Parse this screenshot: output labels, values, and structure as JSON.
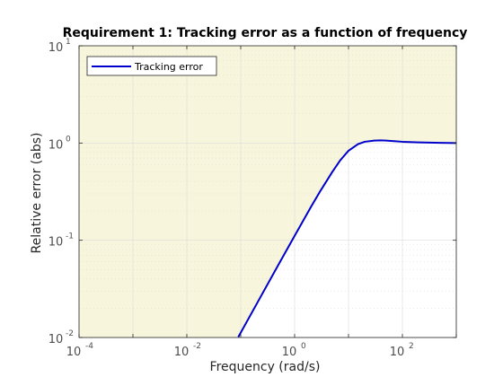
{
  "chart_data": {
    "type": "line",
    "title": "Requirement 1: Tracking error as a function of frequency",
    "xlabel": "Frequency (rad/s)",
    "ylabel": "Relative error (abs)",
    "xscale": "log",
    "yscale": "log",
    "xlim": [
      0.0001,
      1000
    ],
    "ylim": [
      0.01,
      10
    ],
    "grid": true,
    "legend_position": "top-left",
    "x_ticks": [
      {
        "base": "10",
        "exp": "-4",
        "value": 0.0001
      },
      {
        "base": "10",
        "exp": "-2",
        "value": 0.01
      },
      {
        "base": "10",
        "exp": "0",
        "value": 1
      },
      {
        "base": "10",
        "exp": "2",
        "value": 100
      }
    ],
    "y_ticks": [
      {
        "base": "10",
        "exp": "-2",
        "value": 0.01
      },
      {
        "base": "10",
        "exp": "-1",
        "value": 0.1
      },
      {
        "base": "10",
        "exp": "0",
        "value": 1
      },
      {
        "base": "10",
        "exp": "1",
        "value": 10
      }
    ],
    "shaded_region": {
      "description": "requirement bound area",
      "color": "#f7f6dc"
    },
    "series": [
      {
        "name": "Tracking error",
        "color": "#0000cc",
        "x": [
          0.09,
          0.1,
          0.2,
          0.5,
          1,
          2,
          3,
          5,
          7,
          10,
          15,
          20,
          30,
          40,
          50,
          70,
          100,
          200,
          500,
          1000
        ],
        "y": [
          0.0101,
          0.0112,
          0.0224,
          0.0559,
          0.111,
          0.219,
          0.321,
          0.504,
          0.663,
          0.833,
          0.975,
          1.03,
          1.06,
          1.065,
          1.06,
          1.045,
          1.03,
          1.015,
          1.005,
          1.0
        ]
      }
    ]
  }
}
